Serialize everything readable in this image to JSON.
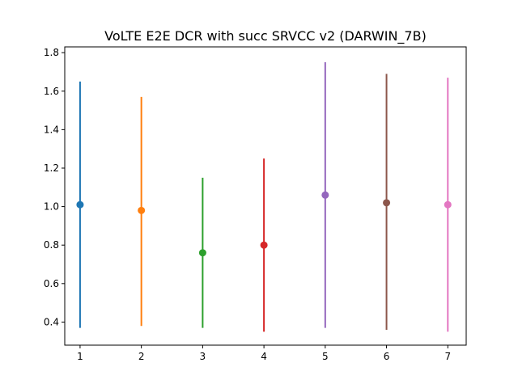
{
  "chart_data": {
    "type": "scatter",
    "title": "VoLTE E2E DCR with succ SRVCC v2 (DARWIN_7B)",
    "xlabel": "",
    "ylabel": "",
    "xlim": [
      0.75,
      7.3
    ],
    "ylim": [
      0.28,
      1.83
    ],
    "x_ticks": [
      1,
      2,
      3,
      4,
      5,
      6,
      7
    ],
    "y_ticks": [
      0.4,
      0.6,
      0.8,
      1.0,
      1.2,
      1.4,
      1.6,
      1.8
    ],
    "y_tick_labels": [
      "0.4",
      "0.6",
      "0.8",
      "1.0",
      "1.2",
      "1.4",
      "1.6",
      "1.8"
    ],
    "grid": false,
    "legend": "none",
    "points": [
      {
        "x": 1,
        "y": 1.01,
        "low": 0.37,
        "high": 1.65,
        "color": "#1f77b4"
      },
      {
        "x": 2,
        "y": 0.98,
        "low": 0.38,
        "high": 1.57,
        "color": "#ff7f0e"
      },
      {
        "x": 3,
        "y": 0.76,
        "low": 0.37,
        "high": 1.15,
        "color": "#2ca02c"
      },
      {
        "x": 4,
        "y": 0.8,
        "low": 0.35,
        "high": 1.25,
        "color": "#d62728"
      },
      {
        "x": 5,
        "y": 1.06,
        "low": 0.37,
        "high": 1.75,
        "color": "#9467bd"
      },
      {
        "x": 6,
        "y": 1.02,
        "low": 0.36,
        "high": 1.69,
        "color": "#8c564b"
      },
      {
        "x": 7,
        "y": 1.01,
        "low": 0.35,
        "high": 1.67,
        "color": "#e377c2"
      }
    ]
  }
}
